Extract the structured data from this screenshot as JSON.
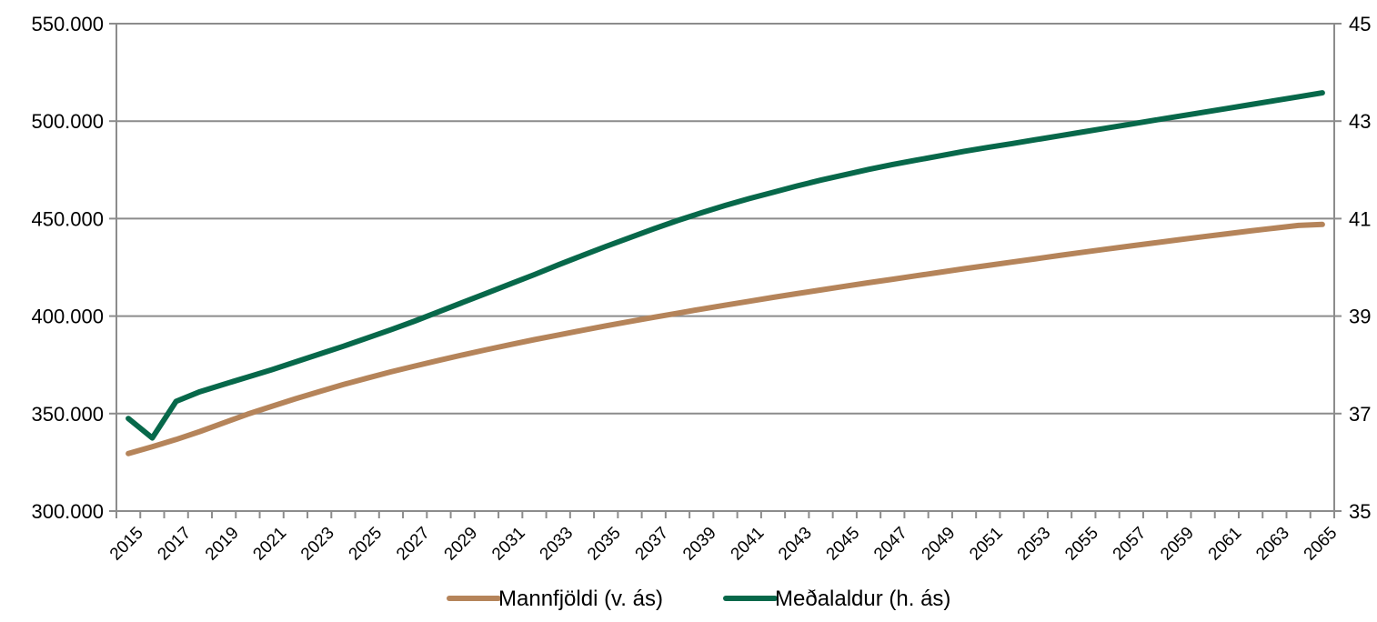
{
  "chart_data": {
    "type": "line",
    "title": "",
    "xlabel": "",
    "ylabel": "",
    "y2label": "",
    "grid": true,
    "legend_position": "bottom",
    "ylim_left": [
      300000,
      550000
    ],
    "ylim_right": [
      35,
      45
    ],
    "y_left_ticks": [
      "300.000",
      "350.000",
      "400.000",
      "450.000",
      "500.000",
      "550.000"
    ],
    "y_right_ticks": [
      "35",
      "37",
      "39",
      "41",
      "43",
      "45"
    ],
    "x": [
      2015,
      2016,
      2017,
      2018,
      2019,
      2020,
      2021,
      2022,
      2023,
      2024,
      2025,
      2026,
      2027,
      2028,
      2029,
      2030,
      2031,
      2032,
      2033,
      2034,
      2035,
      2036,
      2037,
      2038,
      2039,
      2040,
      2041,
      2042,
      2043,
      2044,
      2045,
      2046,
      2047,
      2048,
      2049,
      2050,
      2051,
      2052,
      2053,
      2054,
      2055,
      2056,
      2057,
      2058,
      2059,
      2060,
      2061,
      2062,
      2063,
      2064,
      2065
    ],
    "x_tick_labels": [
      "2015",
      "2017",
      "2019",
      "2021",
      "2023",
      "2025",
      "2027",
      "2029",
      "2031",
      "2033",
      "2035",
      "2037",
      "2039",
      "2041",
      "2043",
      "2045",
      "2047",
      "2049",
      "2051",
      "2053",
      "2055",
      "2057",
      "2059",
      "2061",
      "2063",
      "2065"
    ],
    "series": [
      {
        "name": "Mannfjöldi (v. ás)",
        "axis": "left",
        "color": "#b5845a",
        "values": [
          329500,
          333000,
          336700,
          340800,
          345300,
          349700,
          353700,
          357600,
          361300,
          364900,
          368200,
          371400,
          374400,
          377300,
          380100,
          382800,
          385400,
          387900,
          390300,
          392700,
          395000,
          397200,
          399400,
          401500,
          403600,
          405600,
          407600,
          409600,
          411500,
          413400,
          415300,
          417100,
          418900,
          420700,
          422500,
          424300,
          426000,
          427700,
          429400,
          431100,
          432800,
          434400,
          436000,
          437600,
          439200,
          440700,
          442200,
          443700,
          445100,
          446500,
          447000
        ]
      },
      {
        "name": "Meðalaldur (h. ás)",
        "axis": "right",
        "color": "#07684a",
        "values": [
          36.9,
          36.5,
          37.25,
          37.45,
          37.6,
          37.75,
          37.9,
          38.06,
          38.22,
          38.38,
          38.55,
          38.72,
          38.9,
          39.09,
          39.28,
          39.47,
          39.66,
          39.85,
          40.05,
          40.24,
          40.43,
          40.61,
          40.79,
          40.96,
          41.12,
          41.27,
          41.41,
          41.54,
          41.67,
          41.79,
          41.9,
          42.01,
          42.11,
          42.2,
          42.29,
          42.38,
          42.46,
          42.54,
          42.62,
          42.7,
          42.78,
          42.86,
          42.94,
          43.02,
          43.1,
          43.18,
          43.26,
          43.34,
          43.42,
          43.5,
          43.58
        ]
      }
    ]
  }
}
